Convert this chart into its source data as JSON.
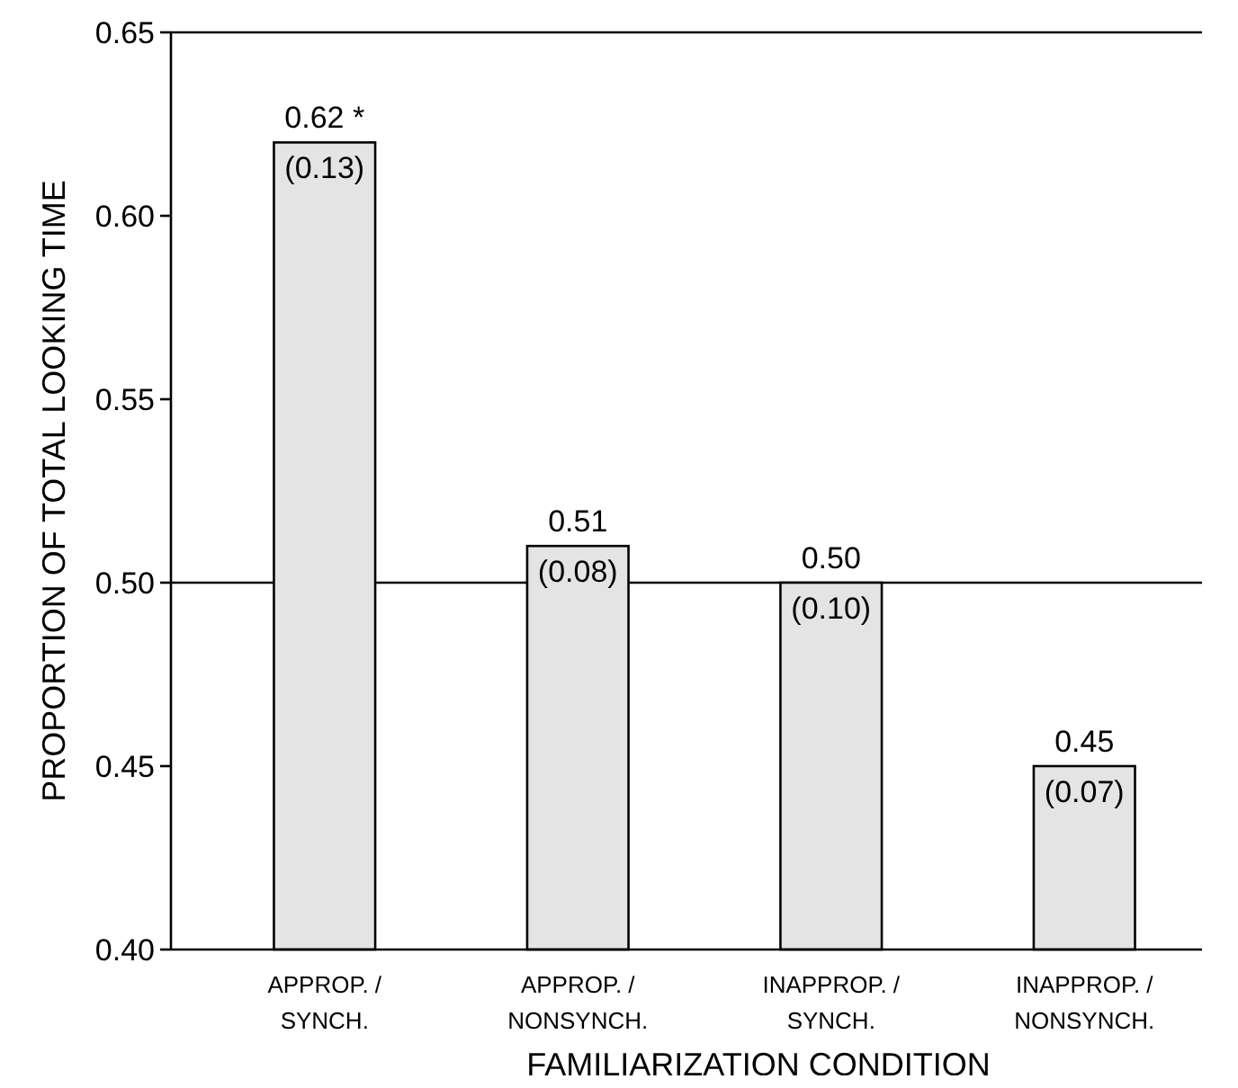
{
  "chart_data": {
    "type": "bar",
    "xlabel": "FAMILIARIZATION CONDITION",
    "ylabel": "PROPORTION OF TOTAL LOOKING TIME",
    "categories": [
      "APPROP. / SYNCH.",
      "APPROP. / NONSYNCH.",
      "INAPPROP. / SYNCH.",
      "INAPPROP. / NONSYNCH."
    ],
    "values": [
      0.62,
      0.51,
      0.5,
      0.45
    ],
    "color": "#e4e4e4",
    "value_labels": [
      "0.62 *",
      "0.51",
      "0.50",
      "0.45"
    ],
    "annotations": [
      {
        "text": "(0.13)",
        "x": "APPROP. / SYNCH.",
        "y": 0.62
      },
      {
        "text": "(0.08)",
        "x": "APPROP. / NONSYNCH.",
        "y": 0.51
      },
      {
        "text": "(0.10)",
        "x": "INAPPROP. / SYNCH.",
        "y": 0.5
      },
      {
        "text": "(0.07)",
        "x": "INAPPROP. / NONSYNCH.",
        "y": 0.45
      }
    ],
    "ylim": [
      0.4,
      0.65
    ],
    "yticks": [
      {
        "value": 0.4,
        "label": "0.40"
      },
      {
        "value": 0.45,
        "label": "0.45"
      },
      {
        "value": 0.5,
        "label": "0.50"
      },
      {
        "value": 0.55,
        "label": "0.55"
      },
      {
        "value": 0.6,
        "label": "0.60"
      },
      {
        "value": 0.65,
        "label": "0.65"
      }
    ],
    "ref_lines": [
      {
        "axis": "y",
        "value": 0.5,
        "color": "#000000"
      }
    ],
    "grid": false
  }
}
